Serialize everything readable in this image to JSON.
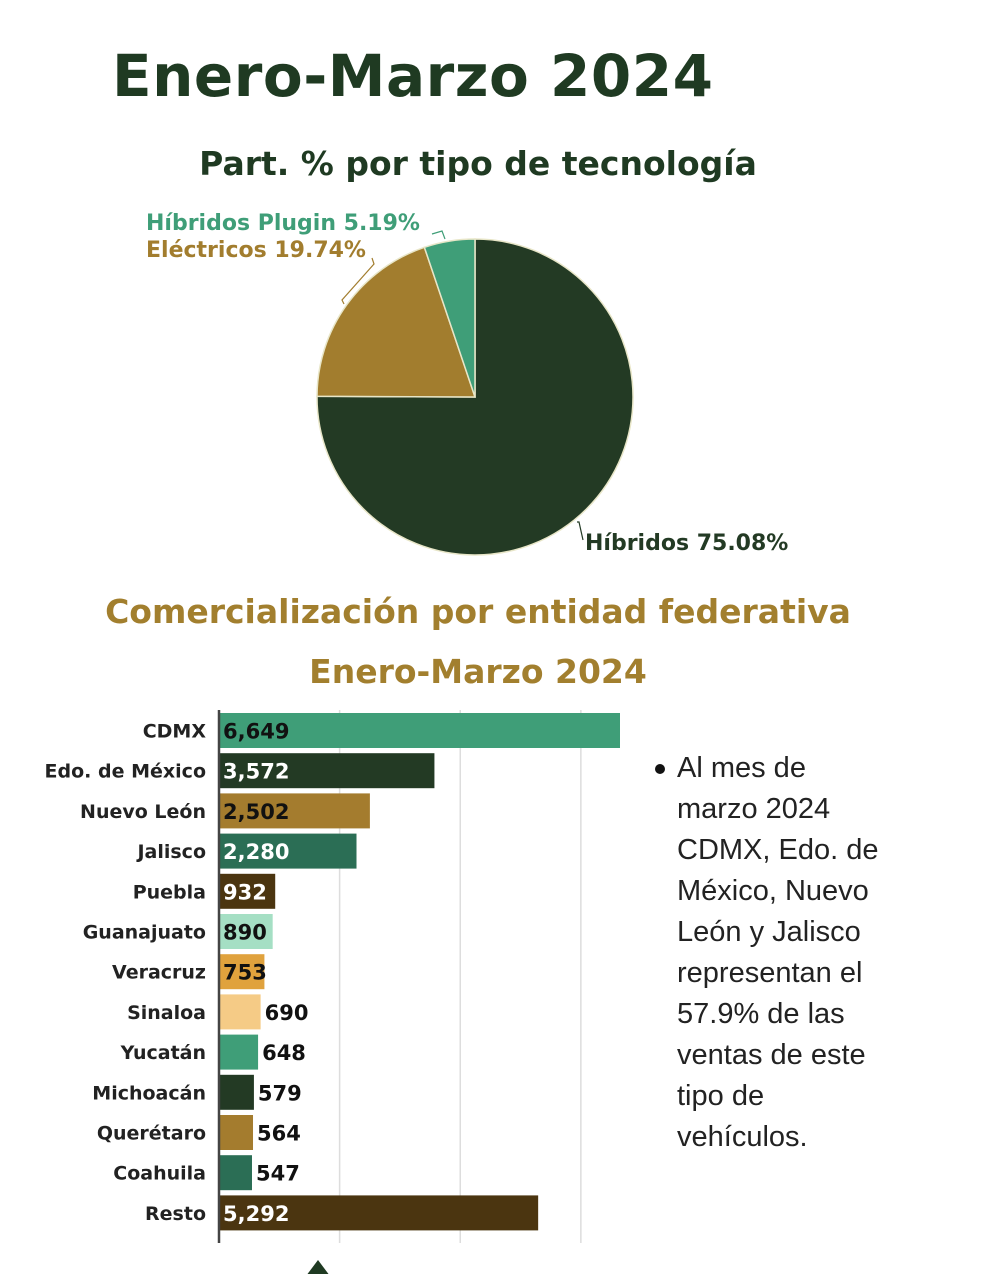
{
  "header": {
    "title": "Enero-Marzo 2024"
  },
  "chart_data": [
    {
      "type": "pie",
      "title": "Part. % por tipo de tecnología",
      "slices": [
        {
          "label": "Híbridos",
          "value": 75.08,
          "display": "Híbridos 75.08%",
          "color": "#233a24"
        },
        {
          "label": "Eléctricos",
          "value": 19.74,
          "display": "Eléctricos 19.74%",
          "color": "#a27d2e"
        },
        {
          "label": "Híbridos Plugin",
          "value": 5.19,
          "display": "Híbridos Plugin 5.19%",
          "color": "#3f9e78"
        }
      ]
    },
    {
      "type": "bar",
      "orientation": "horizontal",
      "title": "Comercialización por entidad federativa",
      "subtitle": "Enero-Marzo 2024",
      "xlim": [
        0,
        6649
      ],
      "grid": true,
      "categories": [
        "CDMX",
        "Edo. de México",
        "Nuevo León",
        "Jalisco",
        "Puebla",
        "Guanajuato",
        "Veracruz",
        "Sinaloa",
        "Yucatán",
        "Michoacán",
        "Querétaro",
        "Coahuila",
        "Resto"
      ],
      "values": [
        6649,
        3572,
        2502,
        2280,
        932,
        890,
        753,
        690,
        648,
        579,
        564,
        547,
        5292
      ],
      "labels": [
        "6,649",
        "3,572",
        "2,502",
        "2,280",
        "932",
        "890",
        "753",
        "690",
        "648",
        "579",
        "564",
        "547",
        "5,292"
      ],
      "colors": [
        "#3f9e78",
        "#233a24",
        "#a47c2e",
        "#2b6e55",
        "#4b3510",
        "#a5dfc4",
        "#e0a23d",
        "#f5cb86",
        "#3f9e78",
        "#233a24",
        "#a47c2e",
        "#2b6e55",
        "#4b3510"
      ],
      "label_colors": [
        "#111",
        "#fff",
        "#111",
        "#fff",
        "#fff",
        "#111",
        "#111",
        "#111",
        "#111",
        "#111",
        "#111",
        "#111",
        "#fff"
      ]
    }
  ],
  "note": {
    "lines": [
      "Al mes de",
      "marzo 2024",
      "CDMX, Edo. de",
      "México, Nuevo",
      "León y Jalisco",
      "representan el",
      "57.9% de las",
      "ventas de este",
      "tipo de",
      "vehículos."
    ]
  }
}
